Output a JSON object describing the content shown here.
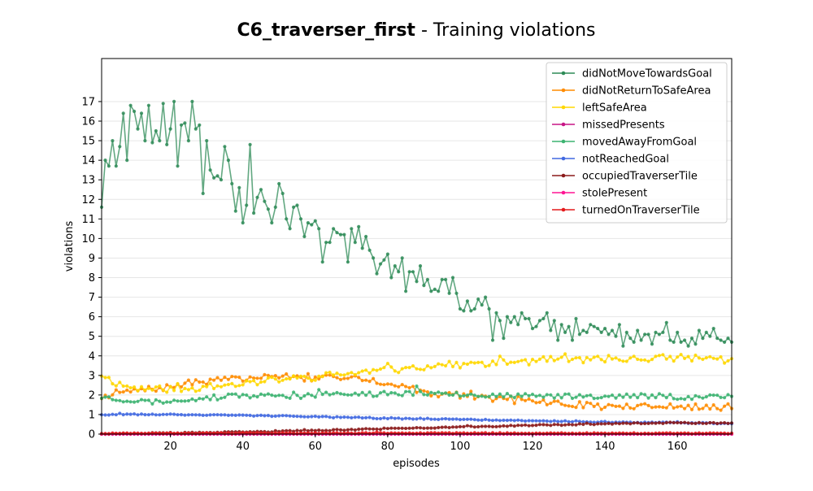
{
  "chart_data": {
    "type": "line",
    "title": "C6_traverser_first",
    "subtitle": " - Training violations",
    "xlabel": "episodes",
    "ylabel": "violations",
    "xlim": [
      1,
      175
    ],
    "ylim": [
      0,
      19.2
    ],
    "xticks": [
      20,
      40,
      60,
      80,
      100,
      120,
      140,
      160
    ],
    "yticks": [
      0,
      1,
      2,
      3,
      4,
      5,
      6,
      7,
      8,
      9,
      10,
      11,
      12,
      13,
      14,
      15,
      16,
      17
    ],
    "grid": "horizontal",
    "legend_position": "top-right",
    "series": [
      {
        "name": "didNotMoveTowardsGoal",
        "color": "#2e8b57",
        "anchors": [
          [
            1,
            11.6
          ],
          [
            2,
            14
          ],
          [
            3,
            13.7
          ],
          [
            4,
            15
          ],
          [
            5,
            13.7
          ],
          [
            6,
            14.7
          ],
          [
            7,
            16.4
          ],
          [
            8,
            14
          ],
          [
            9,
            16.8
          ],
          [
            10,
            16.5
          ],
          [
            11,
            15.6
          ],
          [
            12,
            16.4
          ],
          [
            13,
            15
          ],
          [
            14,
            16.8
          ],
          [
            15,
            14.9
          ],
          [
            16,
            15.5
          ],
          [
            17,
            15
          ],
          [
            18,
            16.9
          ],
          [
            19,
            14.8
          ],
          [
            20,
            15.6
          ],
          [
            21,
            17
          ],
          [
            22,
            13.7
          ],
          [
            23,
            15.8
          ],
          [
            24,
            15.9
          ],
          [
            25,
            15
          ],
          [
            26,
            17
          ],
          [
            27,
            15.6
          ],
          [
            28,
            15.8
          ],
          [
            29,
            12.3
          ],
          [
            30,
            15
          ],
          [
            31,
            13.5
          ],
          [
            32,
            13.1
          ],
          [
            33,
            13.2
          ],
          [
            34,
            13
          ],
          [
            35,
            14.7
          ],
          [
            36,
            14
          ],
          [
            37,
            12.8
          ],
          [
            38,
            11.4
          ],
          [
            39,
            12.6
          ],
          [
            40,
            10.8
          ],
          [
            41,
            11.7
          ],
          [
            42,
            14.8
          ],
          [
            43,
            11.3
          ],
          [
            44,
            12.1
          ],
          [
            45,
            12.5
          ],
          [
            46,
            11.9
          ],
          [
            47,
            11.5
          ],
          [
            48,
            10.8
          ],
          [
            49,
            11.6
          ],
          [
            50,
            12.8
          ],
          [
            51,
            12.3
          ],
          [
            52,
            11
          ],
          [
            53,
            10.5
          ],
          [
            54,
            11.6
          ],
          [
            55,
            11.7
          ],
          [
            56,
            11
          ],
          [
            57,
            10.1
          ],
          [
            58,
            10.8
          ],
          [
            59,
            10.7
          ],
          [
            60,
            10.9
          ],
          [
            61,
            10.5
          ],
          [
            62,
            8.8
          ],
          [
            63,
            9.8
          ],
          [
            64,
            9.8
          ],
          [
            65,
            10.5
          ],
          [
            66,
            10.3
          ],
          [
            67,
            10.2
          ],
          [
            68,
            10.2
          ],
          [
            69,
            8.8
          ],
          [
            70,
            10.5
          ],
          [
            71,
            9.8
          ],
          [
            72,
            10.6
          ],
          [
            73,
            9.5
          ],
          [
            74,
            10.1
          ],
          [
            75,
            9.4
          ],
          [
            76,
            9
          ],
          [
            77,
            8.2
          ],
          [
            78,
            8.7
          ],
          [
            79,
            8.9
          ],
          [
            80,
            9.2
          ],
          [
            81,
            8
          ],
          [
            82,
            8.6
          ],
          [
            83,
            8.3
          ],
          [
            84,
            9
          ],
          [
            85,
            7.3
          ],
          [
            86,
            8.3
          ],
          [
            87,
            8.3
          ],
          [
            88,
            7.8
          ],
          [
            89,
            8.6
          ],
          [
            90,
            7.6
          ],
          [
            91,
            7.9
          ],
          [
            92,
            7.3
          ],
          [
            93,
            7.4
          ],
          [
            94,
            7.3
          ],
          [
            95,
            7.9
          ],
          [
            96,
            7.9
          ],
          [
            97,
            7.2
          ],
          [
            98,
            8
          ],
          [
            99,
            7.2
          ],
          [
            100,
            6.4
          ],
          [
            101,
            6.3
          ],
          [
            102,
            6.8
          ],
          [
            103,
            6.3
          ],
          [
            104,
            6.4
          ],
          [
            105,
            6.9
          ],
          [
            106,
            6.6
          ],
          [
            107,
            7
          ],
          [
            108,
            6.4
          ],
          [
            109,
            4.8
          ],
          [
            110,
            6.2
          ],
          [
            111,
            5.8
          ],
          [
            112,
            4.9
          ],
          [
            113,
            6
          ],
          [
            114,
            5.7
          ],
          [
            115,
            6
          ],
          [
            116,
            5.6
          ],
          [
            117,
            6.2
          ],
          [
            118,
            5.9
          ],
          [
            119,
            5.9
          ],
          [
            120,
            5.4
          ],
          [
            121,
            5.5
          ],
          [
            122,
            5.8
          ],
          [
            123,
            5.9
          ],
          [
            124,
            6.2
          ],
          [
            125,
            5.3
          ],
          [
            126,
            5.8
          ],
          [
            127,
            4.8
          ],
          [
            128,
            5.6
          ],
          [
            129,
            5.2
          ],
          [
            130,
            5.5
          ],
          [
            131,
            4.8
          ],
          [
            132,
            5.9
          ],
          [
            133,
            5.1
          ],
          [
            134,
            5.3
          ],
          [
            135,
            5.2
          ],
          [
            136,
            5.6
          ],
          [
            137,
            5.5
          ],
          [
            138,
            5.4
          ],
          [
            139,
            5.2
          ],
          [
            140,
            5.4
          ],
          [
            141,
            5.1
          ],
          [
            142,
            5.3
          ],
          [
            143,
            5
          ],
          [
            144,
            5.6
          ],
          [
            145,
            4.5
          ],
          [
            146,
            5.2
          ],
          [
            147,
            4.9
          ],
          [
            148,
            4.7
          ],
          [
            149,
            5.3
          ],
          [
            150,
            4.8
          ],
          [
            151,
            5.1
          ],
          [
            152,
            5.1
          ],
          [
            153,
            4.6
          ],
          [
            154,
            5.2
          ],
          [
            155,
            5.1
          ],
          [
            156,
            5.2
          ],
          [
            157,
            5.7
          ],
          [
            158,
            4.8
          ],
          [
            159,
            4.7
          ],
          [
            160,
            5.2
          ],
          [
            161,
            4.7
          ],
          [
            162,
            4.8
          ],
          [
            163,
            4.5
          ],
          [
            164,
            4.9
          ],
          [
            165,
            4.6
          ],
          [
            166,
            5.3
          ],
          [
            167,
            4.9
          ],
          [
            168,
            5.2
          ],
          [
            169,
            5
          ],
          [
            170,
            5.4
          ],
          [
            171,
            4.9
          ],
          [
            172,
            4.8
          ],
          [
            173,
            4.7
          ],
          [
            174,
            4.9
          ],
          [
            175,
            4.7
          ]
        ]
      },
      {
        "name": "didNotReturnToSafeArea",
        "color": "#ff8c00",
        "anchors": [
          [
            1,
            1.9
          ],
          [
            5,
            2.1
          ],
          [
            10,
            2.2
          ],
          [
            15,
            2.3
          ],
          [
            20,
            2.4
          ],
          [
            25,
            2.6
          ],
          [
            30,
            2.7
          ],
          [
            35,
            2.8
          ],
          [
            40,
            2.8
          ],
          [
            45,
            2.9
          ],
          [
            50,
            3
          ],
          [
            55,
            2.9
          ],
          [
            60,
            2.8
          ],
          [
            65,
            2.9
          ],
          [
            70,
            3
          ],
          [
            75,
            2.8
          ],
          [
            80,
            2.6
          ],
          [
            85,
            2.4
          ],
          [
            90,
            2.2
          ],
          [
            95,
            2.1
          ],
          [
            100,
            2
          ],
          [
            105,
            1.9
          ],
          [
            110,
            1.8
          ],
          [
            115,
            1.8
          ],
          [
            120,
            1.7
          ],
          [
            125,
            1.6
          ],
          [
            130,
            1.5
          ],
          [
            135,
            1.5
          ],
          [
            140,
            1.4
          ],
          [
            145,
            1.4
          ],
          [
            150,
            1.4
          ],
          [
            155,
            1.4
          ],
          [
            160,
            1.4
          ],
          [
            165,
            1.4
          ],
          [
            170,
            1.35
          ],
          [
            175,
            1.4
          ]
        ],
        "noise": 0.16,
        "seed": 7
      },
      {
        "name": "leftSafeArea",
        "color": "#ffd700",
        "anchors": [
          [
            1,
            3.05
          ],
          [
            5,
            2.6
          ],
          [
            10,
            2.35
          ],
          [
            15,
            2.3
          ],
          [
            20,
            2.3
          ],
          [
            25,
            2.3
          ],
          [
            30,
            2.4
          ],
          [
            35,
            2.5
          ],
          [
            40,
            2.6
          ],
          [
            45,
            2.7
          ],
          [
            50,
            2.8
          ],
          [
            55,
            2.85
          ],
          [
            60,
            2.9
          ],
          [
            65,
            3.05
          ],
          [
            70,
            3.1
          ],
          [
            75,
            3.2
          ],
          [
            80,
            3.3
          ],
          [
            85,
            3.35
          ],
          [
            90,
            3.45
          ],
          [
            95,
            3.55
          ],
          [
            100,
            3.55
          ],
          [
            105,
            3.6
          ],
          [
            110,
            3.6
          ],
          [
            115,
            3.7
          ],
          [
            120,
            3.8
          ],
          [
            125,
            3.8
          ],
          [
            130,
            3.8
          ],
          [
            135,
            3.8
          ],
          [
            140,
            3.85
          ],
          [
            145,
            3.85
          ],
          [
            150,
            3.85
          ],
          [
            155,
            3.9
          ],
          [
            160,
            3.9
          ],
          [
            165,
            3.9
          ],
          [
            170,
            3.9
          ],
          [
            175,
            3.7
          ]
        ],
        "noise": 0.17,
        "seed": 11
      },
      {
        "name": "missedPresents",
        "color": "#c71585",
        "anchors": [
          [
            1,
            0
          ],
          [
            175,
            0
          ]
        ],
        "noise": 0,
        "seed": 1
      },
      {
        "name": "movedAwayFromGoal",
        "color": "#3cb371",
        "anchors": [
          [
            1,
            1.9
          ],
          [
            5,
            1.8
          ],
          [
            10,
            1.7
          ],
          [
            15,
            1.65
          ],
          [
            20,
            1.7
          ],
          [
            25,
            1.8
          ],
          [
            30,
            1.85
          ],
          [
            35,
            1.9
          ],
          [
            40,
            1.95
          ],
          [
            45,
            1.95
          ],
          [
            50,
            1.95
          ],
          [
            55,
            1.95
          ],
          [
            60,
            2
          ],
          [
            65,
            2.05
          ],
          [
            70,
            2.05
          ],
          [
            75,
            2.05
          ],
          [
            80,
            2.05
          ],
          [
            85,
            2.1
          ],
          [
            90,
            2.1
          ],
          [
            95,
            2.15
          ],
          [
            100,
            2.05
          ],
          [
            105,
            2
          ],
          [
            110,
            1.95
          ],
          [
            115,
            1.95
          ],
          [
            120,
            1.95
          ],
          [
            125,
            1.95
          ],
          [
            130,
            1.95
          ],
          [
            135,
            1.95
          ],
          [
            140,
            1.95
          ],
          [
            145,
            1.95
          ],
          [
            150,
            1.95
          ],
          [
            155,
            1.95
          ],
          [
            160,
            1.9
          ],
          [
            165,
            1.9
          ],
          [
            170,
            1.9
          ],
          [
            175,
            1.9
          ]
        ],
        "noise": 0.13,
        "seed": 23
      },
      {
        "name": "notReachedGoal",
        "color": "#4169e1",
        "anchors": [
          [
            1,
            1
          ],
          [
            20,
            1
          ],
          [
            40,
            0.95
          ],
          [
            60,
            0.9
          ],
          [
            80,
            0.8
          ],
          [
            100,
            0.75
          ],
          [
            120,
            0.68
          ],
          [
            140,
            0.62
          ],
          [
            160,
            0.58
          ],
          [
            175,
            0.55
          ]
        ],
        "noise": 0.025,
        "seed": 31
      },
      {
        "name": "occupiedTraverserTile",
        "color": "#8b1a1a",
        "anchors": [
          [
            1,
            0.02
          ],
          [
            20,
            0.05
          ],
          [
            40,
            0.1
          ],
          [
            60,
            0.18
          ],
          [
            80,
            0.28
          ],
          [
            100,
            0.36
          ],
          [
            120,
            0.45
          ],
          [
            140,
            0.52
          ],
          [
            160,
            0.58
          ],
          [
            175,
            0.55
          ]
        ],
        "noise": 0.03,
        "seed": 37
      },
      {
        "name": "stolePresent",
        "color": "#ff1493",
        "anchors": [
          [
            1,
            0
          ],
          [
            175,
            0
          ]
        ],
        "noise": 0,
        "seed": 41
      },
      {
        "name": "turnedOnTraverserTile",
        "color": "#e41a1c",
        "anchors": [
          [
            1,
            0.04
          ],
          [
            50,
            0.05
          ],
          [
            100,
            0.05
          ],
          [
            175,
            0.04
          ]
        ],
        "noise": 0.02,
        "seed": 43
      }
    ]
  }
}
